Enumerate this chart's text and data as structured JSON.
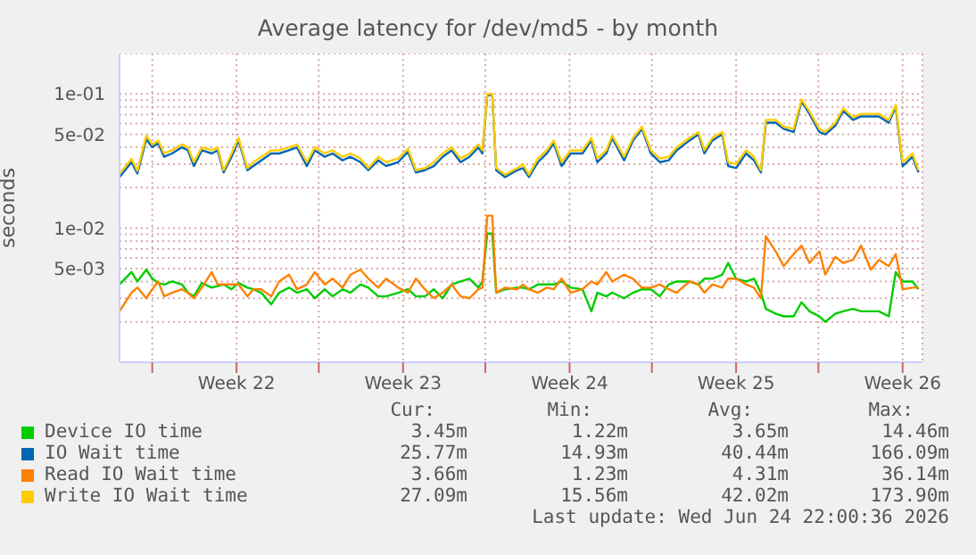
{
  "chart_data": {
    "type": "line",
    "title": "Average latency for /dev/md5 - by month",
    "ylabel": "seconds",
    "log": "y",
    "grid": true,
    "legend": "bottom",
    "marker": "none",
    "xlim": [
      "2026-05-22T08:00",
      "2026-06-25T02:00"
    ],
    "xticks": [
      {
        "value": "2026-05-23T17:00",
        "label": null
      },
      {
        "value": "2026-05-27T06:00",
        "label": "Week 22"
      },
      {
        "value": "2026-05-30T17:00",
        "label": null
      },
      {
        "value": "2026-06-03T06:00",
        "label": "Week 23"
      },
      {
        "value": "2026-06-06T17:00",
        "label": null
      },
      {
        "value": "2026-06-10T06:00",
        "label": "Week 24"
      },
      {
        "value": "2026-06-13T17:00",
        "label": null
      },
      {
        "value": "2026-06-17T06:00",
        "label": "Week 25"
      },
      {
        "value": "2026-06-20T17:00",
        "label": null
      },
      {
        "value": "2026-06-24T06:00",
        "label": "Week 26"
      }
    ],
    "ylim": [
      0.001,
      0.2
    ],
    "yticks": [
      {
        "value": 0.002,
        "label": null
      },
      {
        "value": 0.003,
        "label": null
      },
      {
        "value": 0.004,
        "label": null
      },
      {
        "value": 0.005,
        "label": "5e-03"
      },
      {
        "value": 0.006,
        "label": null
      },
      {
        "value": 0.007,
        "label": null
      },
      {
        "value": 0.008,
        "label": null
      },
      {
        "value": 0.009,
        "label": null
      },
      {
        "value": 0.01,
        "label": "1e-02"
      },
      {
        "value": 0.02,
        "label": null
      },
      {
        "value": 0.03,
        "label": null
      },
      {
        "value": 0.04,
        "label": null
      },
      {
        "value": 0.05,
        "label": "5e-02"
      },
      {
        "value": 0.06,
        "label": null
      },
      {
        "value": 0.07,
        "label": null
      },
      {
        "value": 0.08,
        "label": null
      },
      {
        "value": 0.09,
        "label": null
      },
      {
        "value": 0.1,
        "label": "1e-01"
      }
    ],
    "x": [
      "2026-05-22T08:00",
      "2026-05-22T20:00",
      "2026-05-23T02:00",
      "2026-05-23T11:00",
      "2026-05-23T17:00",
      "2026-05-23T23:00",
      "2026-05-24T05:00",
      "2026-05-24T13:00",
      "2026-05-24T23:00",
      "2026-05-25T05:00",
      "2026-05-25T11:00",
      "2026-05-25T19:00",
      "2026-05-26T05:00",
      "2026-05-26T11:00",
      "2026-05-26T17:00",
      "2026-05-27T01:00",
      "2026-05-27T08:00",
      "2026-05-27T17:00",
      "2026-05-27T23:00",
      "2026-05-28T07:00",
      "2026-05-28T17:00",
      "2026-05-29T01:00",
      "2026-05-29T11:00",
      "2026-05-29T19:00",
      "2026-05-30T05:00",
      "2026-05-30T13:00",
      "2026-05-30T23:00",
      "2026-05-31T07:00",
      "2026-05-31T17:00",
      "2026-06-01T01:00",
      "2026-06-01T11:00",
      "2026-06-01T19:00",
      "2026-06-02T05:00",
      "2026-06-02T13:00",
      "2026-06-03T01:00",
      "2026-06-03T11:00",
      "2026-06-03T19:00",
      "2026-06-04T04:00",
      "2026-06-04T13:00",
      "2026-06-04T22:00",
      "2026-06-05T07:00",
      "2026-06-05T16:00",
      "2026-06-06T01:00",
      "2026-06-06T10:00",
      "2026-06-06T14:00",
      "2026-06-06T19:00",
      "2026-06-07T00:00",
      "2026-06-07T04:00",
      "2026-06-07T13:00",
      "2026-06-08T01:00",
      "2026-06-08T07:00",
      "2026-06-08T13:00",
      "2026-06-08T22:00",
      "2026-06-09T07:00",
      "2026-06-09T14:00",
      "2026-06-09T22:00",
      "2026-06-10T07:00",
      "2026-06-10T19:00",
      "2026-06-11T04:00",
      "2026-06-11T10:00",
      "2026-06-11T19:00",
      "2026-06-12T01:00",
      "2026-06-12T13:00",
      "2026-06-12T22:00",
      "2026-06-13T07:00",
      "2026-06-13T16:00",
      "2026-06-14T01:00",
      "2026-06-14T10:00",
      "2026-06-14T18:00",
      "2026-06-15T07:00",
      "2026-06-15T16:00",
      "2026-06-15T22:00",
      "2026-06-16T06:00",
      "2026-06-16T16:00",
      "2026-06-16T22:00",
      "2026-06-17T06:00",
      "2026-06-17T16:00",
      "2026-06-18T00:00",
      "2026-06-18T07:00",
      "2026-06-18T12:00",
      "2026-06-18T22:00",
      "2026-06-19T06:00",
      "2026-06-19T16:00",
      "2026-06-20T00:00",
      "2026-06-20T08:00",
      "2026-06-20T18:00",
      "2026-06-21T00:00",
      "2026-06-21T10:00",
      "2026-06-21T18:00",
      "2026-06-22T04:00",
      "2026-06-22T12:00",
      "2026-06-22T22:00",
      "2026-06-23T06:00",
      "2026-06-23T16:00",
      "2026-06-23T23:00",
      "2026-06-24T06:00",
      "2026-06-24T16:00",
      "2026-06-24T22:00"
    ],
    "series": [
      {
        "name": "Device IO time",
        "color": "#00cc00",
        "values": [
          0.0038,
          0.0047,
          0.004,
          0.0049,
          0.0042,
          0.0039,
          0.0038,
          0.004,
          0.0038,
          0.0033,
          0.0031,
          0.0039,
          0.0036,
          0.0037,
          0.0038,
          0.0035,
          0.0039,
          0.0036,
          0.0035,
          0.0033,
          0.0027,
          0.0033,
          0.0036,
          0.0033,
          0.0035,
          0.003,
          0.0035,
          0.0031,
          0.0035,
          0.0033,
          0.0038,
          0.0036,
          0.0031,
          0.0031,
          0.0033,
          0.0035,
          0.0031,
          0.0031,
          0.0035,
          0.003,
          0.0038,
          0.004,
          0.0042,
          0.0036,
          0.004,
          0.0091,
          0.0091,
          0.0033,
          0.0035,
          0.0036,
          0.0036,
          0.0035,
          0.0038,
          0.0038,
          0.0038,
          0.004,
          0.0036,
          0.0035,
          0.0024,
          0.0033,
          0.0031,
          0.0033,
          0.003,
          0.0033,
          0.0035,
          0.0035,
          0.0031,
          0.0038,
          0.004,
          0.004,
          0.0038,
          0.0042,
          0.0042,
          0.0045,
          0.0055,
          0.0042,
          0.004,
          0.0042,
          0.0033,
          0.0025,
          0.0023,
          0.0022,
          0.0022,
          0.0028,
          0.0024,
          0.0022,
          0.002,
          0.0023,
          0.0024,
          0.0025,
          0.0024,
          0.0024,
          0.0024,
          0.0022,
          0.0047,
          0.004,
          0.004,
          0.0035
        ]
      },
      {
        "name": "IO Wait time",
        "color": "#0066b3",
        "values": [
          0.024,
          0.031,
          0.0255,
          0.046,
          0.04,
          0.043,
          0.034,
          0.036,
          0.04,
          0.038,
          0.029,
          0.038,
          0.036,
          0.038,
          0.026,
          0.034,
          0.045,
          0.027,
          0.029,
          0.032,
          0.036,
          0.036,
          0.038,
          0.04,
          0.029,
          0.038,
          0.034,
          0.036,
          0.032,
          0.034,
          0.031,
          0.027,
          0.032,
          0.029,
          0.031,
          0.037,
          0.026,
          0.027,
          0.029,
          0.034,
          0.038,
          0.031,
          0.034,
          0.04,
          0.036,
          0.098,
          0.098,
          0.027,
          0.024,
          0.027,
          0.028,
          0.024,
          0.031,
          0.036,
          0.043,
          0.029,
          0.036,
          0.036,
          0.045,
          0.031,
          0.036,
          0.047,
          0.032,
          0.045,
          0.055,
          0.036,
          0.031,
          0.032,
          0.038,
          0.045,
          0.05,
          0.036,
          0.045,
          0.05,
          0.029,
          0.028,
          0.036,
          0.032,
          0.026,
          0.061,
          0.061,
          0.055,
          0.052,
          0.088,
          0.071,
          0.052,
          0.05,
          0.058,
          0.075,
          0.064,
          0.068,
          0.068,
          0.068,
          0.061,
          0.08,
          0.029,
          0.034,
          0.026
        ]
      },
      {
        "name": "Read IO Wait time",
        "color": "#ff8000",
        "values": [
          0.0024,
          0.0033,
          0.0036,
          0.003,
          0.0035,
          0.004,
          0.0031,
          0.0033,
          0.0035,
          0.0033,
          0.003,
          0.0036,
          0.0047,
          0.0038,
          0.0038,
          0.0038,
          0.0038,
          0.0031,
          0.0035,
          0.0035,
          0.0031,
          0.004,
          0.0045,
          0.0035,
          0.0038,
          0.0047,
          0.0038,
          0.0042,
          0.0036,
          0.0045,
          0.0049,
          0.0042,
          0.0036,
          0.0042,
          0.0036,
          0.0033,
          0.0042,
          0.0035,
          0.003,
          0.0033,
          0.0038,
          0.0031,
          0.003,
          0.0035,
          0.0036,
          0.0124,
          0.0124,
          0.0033,
          0.0036,
          0.0035,
          0.0038,
          0.0035,
          0.0033,
          0.0036,
          0.0035,
          0.0042,
          0.0033,
          0.0035,
          0.004,
          0.0038,
          0.0047,
          0.004,
          0.0045,
          0.0042,
          0.0036,
          0.0036,
          0.0038,
          0.0035,
          0.0033,
          0.004,
          0.0038,
          0.0033,
          0.0038,
          0.0036,
          0.0042,
          0.0042,
          0.0038,
          0.0036,
          0.003,
          0.0087,
          0.0067,
          0.0052,
          0.0064,
          0.0074,
          0.0055,
          0.0067,
          0.0045,
          0.0061,
          0.0055,
          0.0058,
          0.0074,
          0.0049,
          0.0058,
          0.0052,
          0.0064,
          0.0035,
          0.0036,
          0.0036
        ]
      },
      {
        "name": "Write IO Wait time",
        "color": "#ffcc00",
        "values": [
          0.0253,
          0.0328,
          0.0267,
          0.049,
          0.042,
          0.045,
          0.036,
          0.038,
          0.042,
          0.04,
          0.031,
          0.04,
          0.038,
          0.04,
          0.027,
          0.036,
          0.047,
          0.028,
          0.031,
          0.034,
          0.038,
          0.038,
          0.04,
          0.042,
          0.031,
          0.04,
          0.036,
          0.038,
          0.034,
          0.036,
          0.033,
          0.028,
          0.034,
          0.031,
          0.033,
          0.039,
          0.027,
          0.028,
          0.031,
          0.036,
          0.04,
          0.033,
          0.036,
          0.042,
          0.038,
          0.1,
          0.1,
          0.028,
          0.025,
          0.028,
          0.03,
          0.025,
          0.033,
          0.038,
          0.045,
          0.031,
          0.038,
          0.038,
          0.047,
          0.033,
          0.038,
          0.049,
          0.034,
          0.047,
          0.057,
          0.038,
          0.033,
          0.034,
          0.04,
          0.047,
          0.052,
          0.038,
          0.047,
          0.052,
          0.031,
          0.03,
          0.038,
          0.034,
          0.027,
          0.064,
          0.064,
          0.057,
          0.055,
          0.091,
          0.074,
          0.055,
          0.052,
          0.061,
          0.078,
          0.067,
          0.071,
          0.071,
          0.071,
          0.064,
          0.083,
          0.031,
          0.036,
          0.027
        ]
      }
    ],
    "annotations": [
      "Cur:",
      "Min:",
      "Avg:",
      "Max:",
      "3.45m",
      "1.22m",
      "3.65m",
      "14.46m",
      "25.77m",
      "14.93m",
      "40.44m",
      "166.09m",
      "3.66m",
      "1.23m",
      "4.31m",
      "36.14m",
      "27.09m",
      "15.56m",
      "42.02m",
      "173.90m",
      "Last update: Wed Jun 24 22:00:36 2026"
    ]
  }
}
